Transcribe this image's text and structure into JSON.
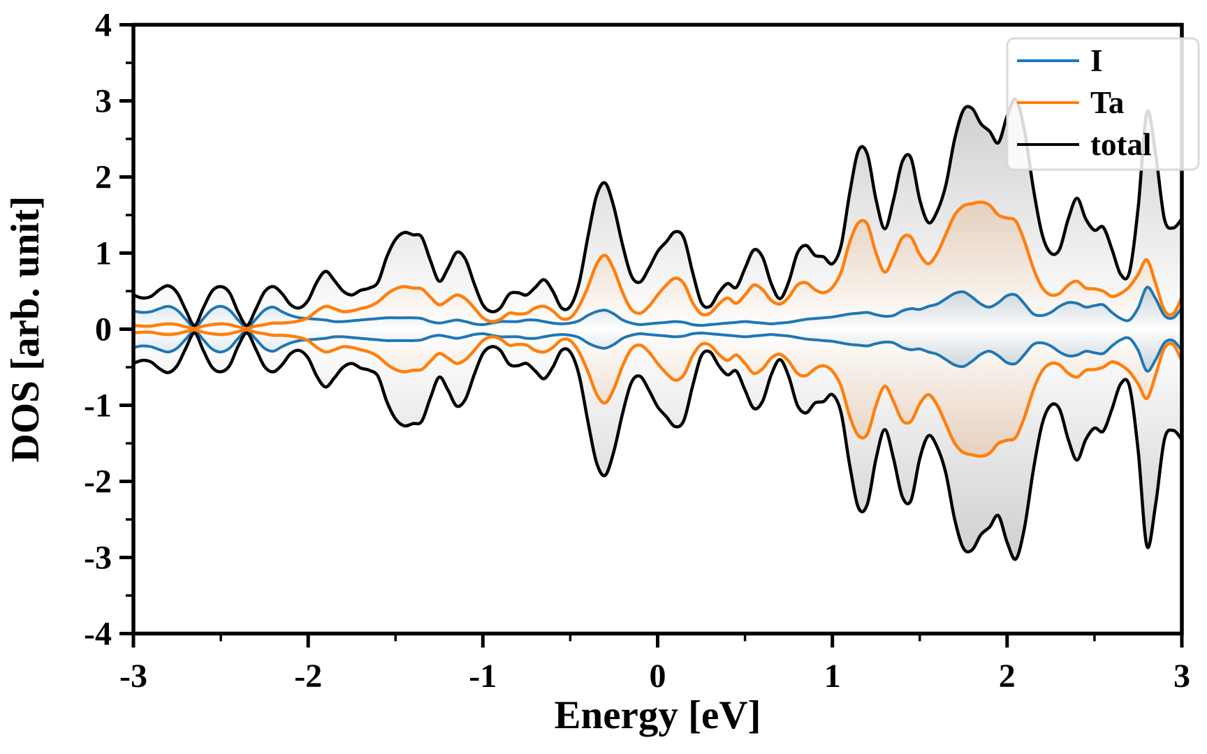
{
  "figure": {
    "xlabel": "Energy [eV]",
    "ylabel": "DOS [arb. unit]",
    "background": "#ffffff",
    "spine_color": "#000000"
  },
  "legend": {
    "position": "upper right",
    "items": [
      {
        "label": "I",
        "color": "#1f77b4"
      },
      {
        "label": "Ta",
        "color": "#ff7f0e"
      },
      {
        "label": "total",
        "color": "#000000"
      }
    ]
  },
  "chart_data": {
    "type": "area",
    "title": "",
    "xlabel": "Energy [eV]",
    "ylabel": "DOS [arb. unit]",
    "xlim": [
      -3,
      3
    ],
    "ylim": [
      -4,
      4
    ],
    "x_major_ticks": [
      -3,
      -2,
      -1,
      0,
      1,
      2,
      3
    ],
    "y_major_ticks": [
      -4,
      -3,
      -2,
      -1,
      0,
      1,
      2,
      3,
      4
    ],
    "minor_tick_step": 0.5,
    "grid": false,
    "legend_position": "upper right",
    "mirrored_about_zero": true,
    "note": "Spin-resolved density of states: lower half of each curve is the negative mirror of the listed values",
    "x_start": -3,
    "x_step": 0.05,
    "series": [
      {
        "name": "I",
        "color": "#1f77b4",
        "fill_color": "#1f77b4",
        "fill_alpha": 0.25,
        "line_width": 4,
        "values": [
          0.24,
          0.22,
          0.23,
          0.27,
          0.3,
          0.25,
          0.13,
          0.02,
          0.14,
          0.26,
          0.3,
          0.25,
          0.12,
          0.02,
          0.13,
          0.25,
          0.29,
          0.23,
          0.18,
          0.15,
          0.14,
          0.13,
          0.12,
          0.1,
          0.1,
          0.11,
          0.12,
          0.13,
          0.14,
          0.15,
          0.15,
          0.15,
          0.15,
          0.14,
          0.1,
          0.08,
          0.1,
          0.12,
          0.1,
          0.07,
          0.06,
          0.08,
          0.1,
          0.1,
          0.1,
          0.12,
          0.12,
          0.1,
          0.08,
          0.07,
          0.08,
          0.11,
          0.18,
          0.23,
          0.25,
          0.2,
          0.12,
          0.08,
          0.06,
          0.07,
          0.08,
          0.09,
          0.1,
          0.09,
          0.06,
          0.05,
          0.06,
          0.07,
          0.08,
          0.09,
          0.1,
          0.09,
          0.08,
          0.07,
          0.08,
          0.09,
          0.11,
          0.13,
          0.14,
          0.15,
          0.16,
          0.18,
          0.2,
          0.21,
          0.22,
          0.19,
          0.17,
          0.18,
          0.24,
          0.27,
          0.26,
          0.3,
          0.33,
          0.4,
          0.47,
          0.49,
          0.42,
          0.33,
          0.29,
          0.35,
          0.44,
          0.45,
          0.33,
          0.2,
          0.18,
          0.22,
          0.3,
          0.35,
          0.34,
          0.29,
          0.31,
          0.32,
          0.22,
          0.14,
          0.12,
          0.28,
          0.55,
          0.4,
          0.18,
          0.15,
          0.28
        ]
      },
      {
        "name": "Ta",
        "color": "#ff7f0e",
        "fill_color": "#ff7f0e",
        "fill_alpha": 0.22,
        "line_width": 4.5,
        "values": [
          0.05,
          0.04,
          0.04,
          0.06,
          0.07,
          0.06,
          0.03,
          0.01,
          0.04,
          0.06,
          0.07,
          0.06,
          0.03,
          0.01,
          0.04,
          0.06,
          0.08,
          0.08,
          0.09,
          0.11,
          0.15,
          0.24,
          0.3,
          0.27,
          0.23,
          0.24,
          0.27,
          0.3,
          0.36,
          0.46,
          0.53,
          0.56,
          0.54,
          0.53,
          0.42,
          0.32,
          0.38,
          0.45,
          0.4,
          0.28,
          0.15,
          0.1,
          0.13,
          0.21,
          0.2,
          0.21,
          0.28,
          0.3,
          0.24,
          0.14,
          0.15,
          0.3,
          0.55,
          0.85,
          0.97,
          0.78,
          0.48,
          0.26,
          0.21,
          0.3,
          0.45,
          0.58,
          0.67,
          0.6,
          0.35,
          0.2,
          0.21,
          0.33,
          0.41,
          0.34,
          0.45,
          0.58,
          0.52,
          0.38,
          0.33,
          0.42,
          0.58,
          0.61,
          0.52,
          0.48,
          0.55,
          0.75,
          1.15,
          1.4,
          1.38,
          1.0,
          0.75,
          0.95,
          1.2,
          1.21,
          0.98,
          0.86,
          1.0,
          1.25,
          1.5,
          1.62,
          1.65,
          1.67,
          1.63,
          1.5,
          1.46,
          1.42,
          1.15,
          0.8,
          0.55,
          0.45,
          0.47,
          0.58,
          0.63,
          0.54,
          0.53,
          0.5,
          0.43,
          0.47,
          0.56,
          0.72,
          0.91,
          0.6,
          0.25,
          0.2,
          0.42
        ]
      },
      {
        "name": "total",
        "color": "#000000",
        "fill_color": "#8c8c8c",
        "fill_alpha": 0.45,
        "line_width": 4.5,
        "values": [
          0.45,
          0.41,
          0.43,
          0.52,
          0.57,
          0.48,
          0.25,
          0.05,
          0.28,
          0.5,
          0.56,
          0.48,
          0.22,
          0.05,
          0.26,
          0.49,
          0.56,
          0.47,
          0.32,
          0.28,
          0.38,
          0.62,
          0.76,
          0.64,
          0.5,
          0.45,
          0.51,
          0.54,
          0.62,
          0.95,
          1.18,
          1.27,
          1.24,
          1.21,
          0.9,
          0.63,
          0.8,
          1.01,
          0.92,
          0.6,
          0.32,
          0.23,
          0.28,
          0.46,
          0.48,
          0.45,
          0.55,
          0.65,
          0.5,
          0.28,
          0.3,
          0.6,
          1.2,
          1.75,
          1.92,
          1.6,
          1.1,
          0.7,
          0.62,
          0.8,
          1.02,
          1.15,
          1.28,
          1.2,
          0.75,
          0.35,
          0.3,
          0.48,
          0.6,
          0.55,
          0.8,
          1.04,
          0.95,
          0.6,
          0.4,
          0.62,
          1.0,
          1.1,
          0.97,
          0.95,
          0.86,
          1.1,
          1.8,
          2.35,
          2.3,
          1.7,
          1.32,
          1.7,
          2.2,
          2.25,
          1.7,
          1.4,
          1.55,
          1.9,
          2.5,
          2.88,
          2.9,
          2.7,
          2.6,
          2.45,
          2.8,
          3.02,
          2.6,
          1.85,
          1.25,
          1.0,
          1.05,
          1.45,
          1.72,
          1.45,
          1.3,
          1.34,
          1.05,
          0.72,
          0.75,
          1.6,
          2.85,
          2.3,
          1.45,
          1.33,
          1.45
        ]
      }
    ]
  }
}
